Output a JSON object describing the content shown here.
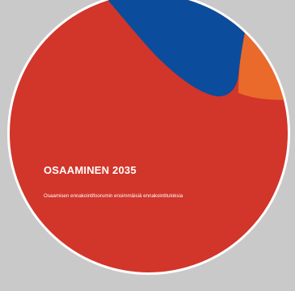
{
  "cover": {
    "title": "OSAAMINEN 2035",
    "subtitle": "Osaamisen ennakointifoorumin ensimmäisiä ennakointituloksia"
  },
  "colors": {
    "background": "#c9c9c9",
    "cover_red": "#d2352a",
    "cover_blue": "#0b4d9c",
    "cover_orange": "#ea6a2c",
    "border": "#ffffff",
    "text": "#ffffff"
  }
}
